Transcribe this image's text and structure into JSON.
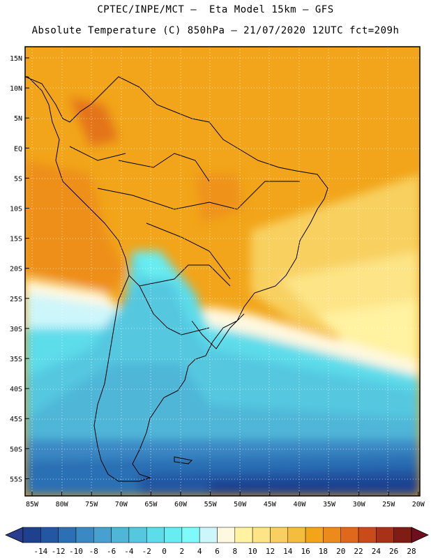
{
  "title_line1": "CPTEC/INPE/MCT –  Eta Model 15km – GFS",
  "title_line2": "Absolute Temperature (C) 850hPa – 21/07/2020 12UTC fct=209h",
  "lat_labels": [
    "15N",
    "10N",
    "5N",
    "EQ",
    "5S",
    "10S",
    "15S",
    "20S",
    "25S",
    "30S",
    "35S",
    "40S",
    "45S",
    "50S",
    "55S"
  ],
  "lon_labels": [
    "85W",
    "80W",
    "75W",
    "70W",
    "65W",
    "60W",
    "55W",
    "50W",
    "45W",
    "40W",
    "35W",
    "30W",
    "25W",
    "20W"
  ],
  "colorbar": {
    "labels": [
      "-14",
      "-12",
      "-10",
      "-8",
      "-6",
      "-4",
      "-2",
      "0",
      "2",
      "4",
      "6",
      "8",
      "10",
      "12",
      "14",
      "16",
      "18",
      "20",
      "22",
      "24",
      "26",
      "28"
    ],
    "colors": [
      "#1f3f8f",
      "#2457a3",
      "#2c6fb4",
      "#3a88c4",
      "#48a0cf",
      "#4fb6d8",
      "#55c8e0",
      "#5ddcea",
      "#67ecf1",
      "#7ff9f9",
      "#cdf6fb",
      "#fff8e0",
      "#fff2a0",
      "#fde486",
      "#f8d061",
      "#f4bd3e",
      "#f2a51a",
      "#ec8a1c",
      "#e0681a",
      "#c84b1a",
      "#a83218",
      "#7f1c14"
    ]
  }
}
